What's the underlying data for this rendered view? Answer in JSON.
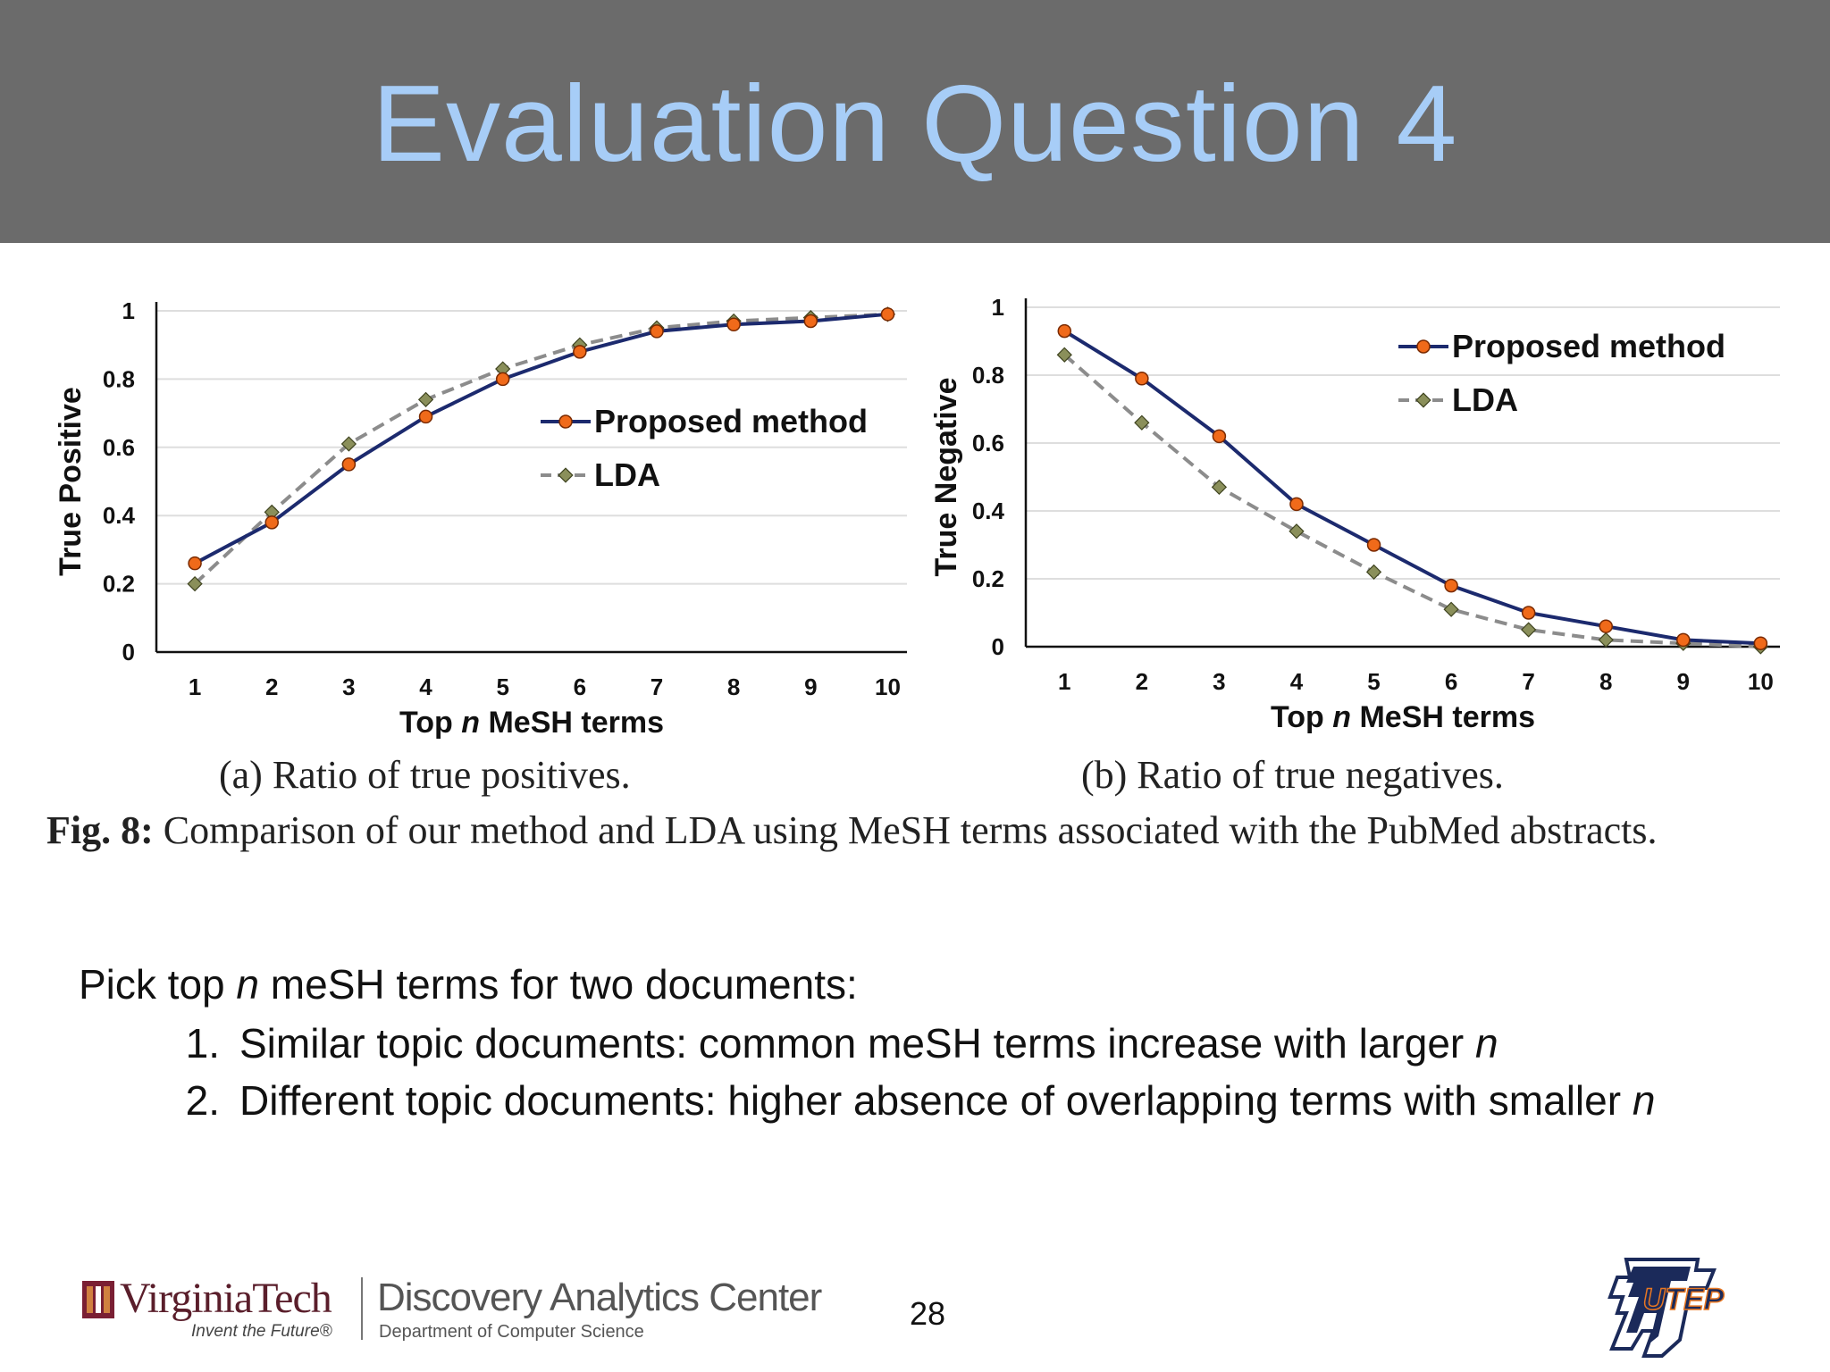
{
  "slide": {
    "title": "Evaluation Question 4",
    "page_number": "28"
  },
  "figure": {
    "caption_a": "(a) Ratio of true positives.",
    "caption_b": "(b) Ratio of true negatives.",
    "fig_label": "Fig. 8:",
    "fig_caption": "Comparison of our method and LDA using MeSH terms associated with the PubMed abstracts."
  },
  "notes": {
    "intro_before": "Pick top ",
    "intro_var": "n",
    "intro_after": " meSH terms for two documents:",
    "items": [
      {
        "num": "1.",
        "text": "Similar topic documents: common meSH terms increase with larger ",
        "var": "n"
      },
      {
        "num": "2.",
        "text": "Different topic documents: higher absence of overlapping terms with smaller ",
        "var": "n"
      }
    ]
  },
  "footer": {
    "vt_name": "VirginiaTech",
    "vt_tagline": "Invent the Future®",
    "dac_name": "Discovery Analytics Center",
    "dac_dept": "Department of Computer Science",
    "utep_label": "UTEP"
  },
  "colors": {
    "title_bar": "#6b6b6b",
    "title_text": "#a7cdf7",
    "proposed_line": "#1c2a6e",
    "proposed_marker": "#f06a1a",
    "lda_line": "#8c8c8c",
    "lda_marker": "#8a8f5a"
  },
  "chart_data": [
    {
      "type": "line",
      "x": [
        1,
        2,
        3,
        4,
        5,
        6,
        7,
        8,
        9,
        10
      ],
      "xlabel_parts": [
        "Top ",
        "n",
        " MeSH terms"
      ],
      "ylabel": "True Positive",
      "ylim": [
        0,
        1
      ],
      "yticks": [
        "0",
        "0.2",
        "0.4",
        "0.6",
        "0.8",
        "1"
      ],
      "grid": true,
      "legend_position": "right-middle",
      "series": [
        {
          "name": "Proposed method",
          "values": [
            0.26,
            0.38,
            0.55,
            0.69,
            0.8,
            0.88,
            0.94,
            0.96,
            0.97,
            0.99
          ]
        },
        {
          "name": "LDA",
          "values": [
            0.2,
            0.41,
            0.61,
            0.74,
            0.83,
            0.9,
            0.95,
            0.97,
            0.98,
            0.99
          ]
        }
      ]
    },
    {
      "type": "line",
      "x": [
        1,
        2,
        3,
        4,
        5,
        6,
        7,
        8,
        9,
        10
      ],
      "xlabel_parts": [
        "Top ",
        "n",
        " MeSH terms"
      ],
      "ylabel": "True Negative",
      "ylim": [
        0,
        1
      ],
      "yticks": [
        "0",
        "0.2",
        "0.4",
        "0.6",
        "0.8",
        "1"
      ],
      "grid": true,
      "legend_position": "top-right",
      "series": [
        {
          "name": "Proposed method",
          "values": [
            0.93,
            0.79,
            0.62,
            0.42,
            0.3,
            0.18,
            0.1,
            0.06,
            0.02,
            0.01
          ]
        },
        {
          "name": "LDA",
          "values": [
            0.86,
            0.66,
            0.47,
            0.34,
            0.22,
            0.11,
            0.05,
            0.02,
            0.01,
            0.0
          ]
        }
      ]
    }
  ]
}
